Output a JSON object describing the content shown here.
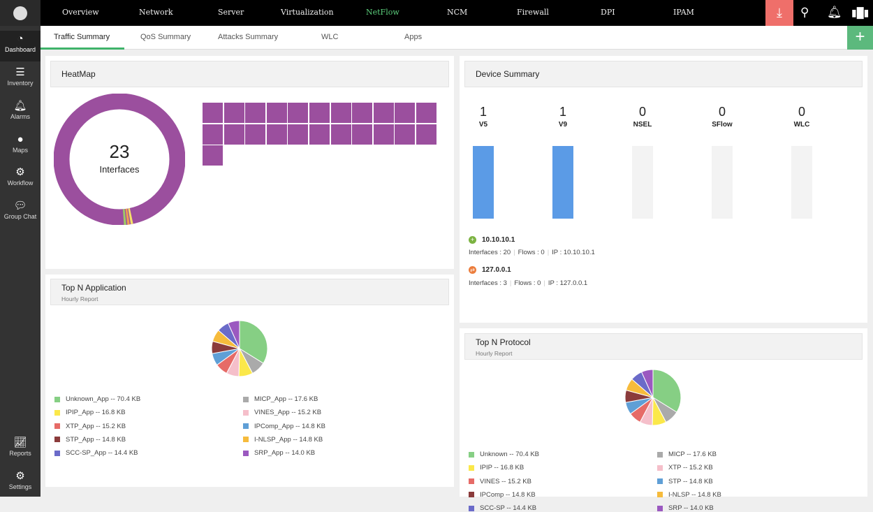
{
  "sidebar": {
    "items": [
      {
        "label": "Dashboard",
        "icon": "gauge-icon"
      },
      {
        "label": "Inventory",
        "icon": "list-check-icon"
      },
      {
        "label": "Alarms",
        "icon": "alarm-bell-icon"
      },
      {
        "label": "Maps",
        "icon": "map-pin-icon"
      },
      {
        "label": "Workflow",
        "icon": "workflow-icon"
      },
      {
        "label": "Group Chat",
        "icon": "chat-icon"
      },
      {
        "label": "Reports",
        "icon": "chart-icon"
      },
      {
        "label": "Settings",
        "icon": "gear-icon"
      }
    ]
  },
  "topnav": {
    "items": [
      "Overview",
      "Network",
      "Server",
      "Virtualization",
      "NetFlow",
      "NCM",
      "Firewall",
      "DPI",
      "IPAM"
    ],
    "active": "NetFlow"
  },
  "subnav": {
    "tabs": [
      "Traffic Summary",
      "QoS Summary",
      "Attacks Summary",
      "WLC",
      "Apps"
    ],
    "active": "Traffic Summary"
  },
  "colors": {
    "accent": "#3fb36a",
    "download": "#ef6f6a",
    "heatmap": "#9b4f9e",
    "bar": "#5b9be6"
  },
  "heatmap": {
    "title": "HeatMap",
    "count": "23",
    "label": "Interfaces",
    "tiles": 23
  },
  "device_summary": {
    "title": "Device Summary",
    "columns": [
      {
        "count": "1",
        "label": "V5",
        "filled": true
      },
      {
        "count": "1",
        "label": "V9",
        "filled": true
      },
      {
        "count": "0",
        "label": "NSEL",
        "filled": false
      },
      {
        "count": "0",
        "label": "SFlow",
        "filled": false
      },
      {
        "count": "0",
        "label": "WLC",
        "filled": false
      }
    ],
    "devices": [
      {
        "name": "10.10.10.1",
        "interfaces": "Interfaces : 20",
        "flows": "Flows : 0",
        "ip": "IP : 10.10.10.1"
      },
      {
        "name": "127.0.0.1",
        "interfaces": "Interfaces : 3",
        "flows": "Flows : 0",
        "ip": "IP : 127.0.0.1"
      }
    ]
  },
  "top_app": {
    "title": "Top N Application",
    "subtitle": "Hourly Report"
  },
  "top_protocol": {
    "title": "Top N Protocol",
    "subtitle": "Hourly Report"
  },
  "chart_data": [
    {
      "type": "pie",
      "unit": "KB",
      "slices": [
        {
          "name": "Unknown_App",
          "value": 70.4,
          "label": "Unknown_App -- 70.4 KB",
          "color": "#86cf84"
        },
        {
          "name": "MICP_App",
          "value": 17.6,
          "label": "MICP_App -- 17.6 KB",
          "color": "#aaaaaa"
        },
        {
          "name": "IPIP_App",
          "value": 16.8,
          "label": "IPIP_App -- 16.8 KB",
          "color": "#fbe84a"
        },
        {
          "name": "VINES_App",
          "value": 15.2,
          "label": "VINES_App -- 15.2 KB",
          "color": "#f5bfca"
        },
        {
          "name": "XTP_App",
          "value": 15.2,
          "label": "XTP_App -- 15.2 KB",
          "color": "#e66b67"
        },
        {
          "name": "IPComp_App",
          "value": 14.8,
          "label": "IPComp_App -- 14.8 KB",
          "color": "#5f9fd6"
        },
        {
          "name": "STP_App",
          "value": 14.8,
          "label": "STP_App -- 14.8 KB",
          "color": "#8b3b3b"
        },
        {
          "name": "I-NLSP_App",
          "value": 14.8,
          "label": "I-NLSP_App -- 14.8 KB",
          "color": "#f6bb3c"
        },
        {
          "name": "SCC-SP_App",
          "value": 14.4,
          "label": "SCC-SP_App -- 14.4 KB",
          "color": "#6b6bc9"
        },
        {
          "name": "SRP_App",
          "value": 14.0,
          "label": "SRP_App -- 14.0 KB",
          "color": "#9b59c0"
        }
      ]
    },
    {
      "type": "pie",
      "unit": "KB",
      "slices": [
        {
          "name": "Unknown",
          "value": 70.4,
          "label": "Unknown -- 70.4 KB",
          "color": "#86cf84"
        },
        {
          "name": "MICP",
          "value": 17.6,
          "label": "MICP -- 17.6 KB",
          "color": "#aaaaaa"
        },
        {
          "name": "IPIP",
          "value": 16.8,
          "label": "IPIP -- 16.8 KB",
          "color": "#fbe84a"
        },
        {
          "name": "XTP",
          "value": 15.2,
          "label": "XTP -- 15.2 KB",
          "color": "#f5bfca"
        },
        {
          "name": "VINES",
          "value": 15.2,
          "label": "VINES -- 15.2 KB",
          "color": "#e66b67"
        },
        {
          "name": "STP",
          "value": 14.8,
          "label": "STP -- 14.8 KB",
          "color": "#5f9fd6"
        },
        {
          "name": "IPComp",
          "value": 14.8,
          "label": "IPComp -- 14.8 KB",
          "color": "#8b3b3b"
        },
        {
          "name": "I-NLSP",
          "value": 14.8,
          "label": "I-NLSP -- 14.8 KB",
          "color": "#f6bb3c"
        },
        {
          "name": "SCC-SP",
          "value": 14.4,
          "label": "SCC-SP -- 14.4 KB",
          "color": "#6b6bc9"
        },
        {
          "name": "SRP",
          "value": 14.0,
          "label": "SRP -- 14.0 KB",
          "color": "#9b59c0"
        }
      ]
    }
  ]
}
